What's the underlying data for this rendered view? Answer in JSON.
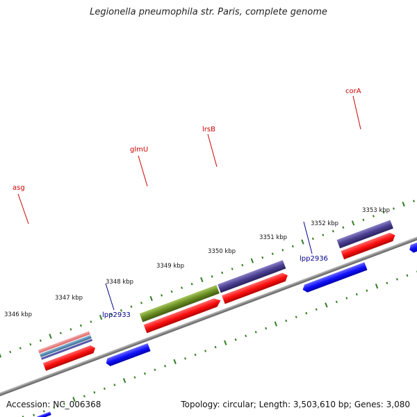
{
  "title": "Legionella pneumophila str. Paris, complete genome",
  "footer": {
    "accession": "Accession: NC_006368",
    "summary": "Topology: circular; Length: 3,503,610 bp; Genes: 3,080"
  },
  "colors": {
    "backbone": "#8a8a8a",
    "tick": "#2e7d1e",
    "gene_label_forward": "#cc0000",
    "gene_label_reverse": "#00008b",
    "cds_red": "#ff1a1a",
    "cds_blue": "#1a1aff",
    "gene_purple": "#4a3f8f",
    "gene_green": "#6b8e23",
    "gene_pink": "#e88080",
    "gene_steel": "#4f86b0"
  },
  "scale_labels": [
    "3346 kbp",
    "3347 kbp",
    "3348 kbp",
    "3349 kbp",
    "3350 kbp",
    "3351 kbp",
    "3352 kbp",
    "3353 kbp"
  ],
  "gene_labels": {
    "asg": "asg",
    "glmU": "glmU",
    "lrsB": "lrsB",
    "corA": "corA",
    "lpp2933": "lpp2933",
    "lpp2936": "lpp2936"
  }
}
